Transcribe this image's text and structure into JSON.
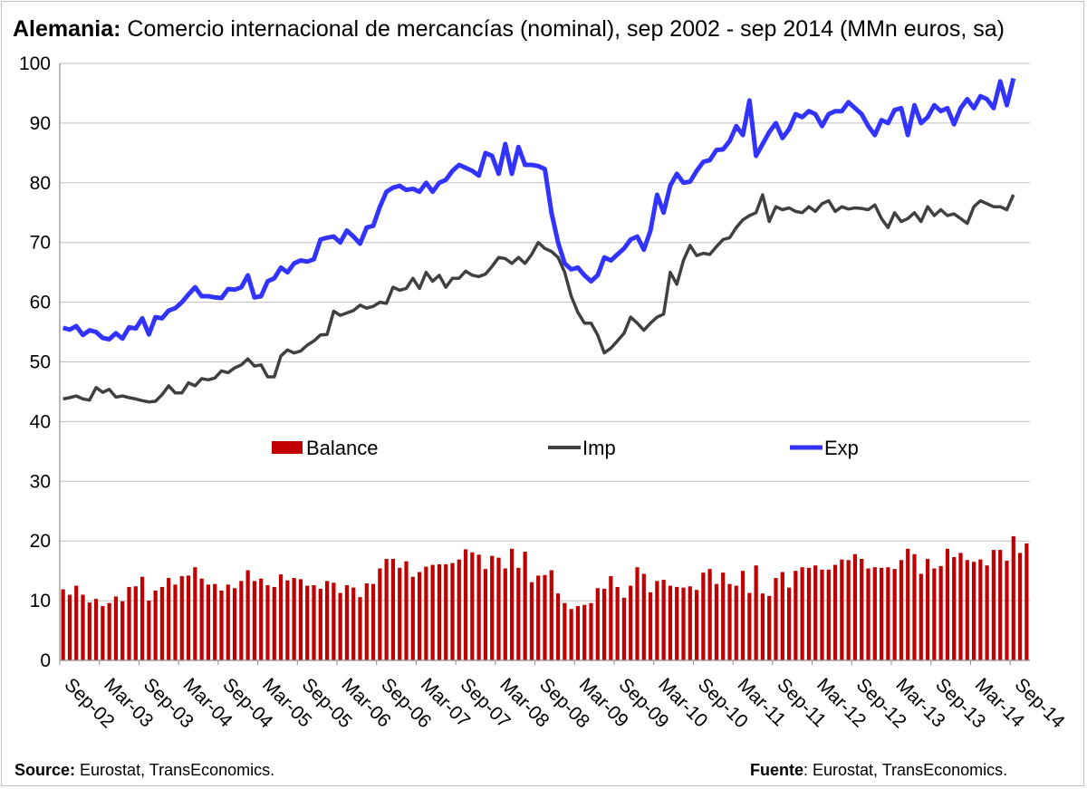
{
  "title": {
    "bold": "Alemania:",
    "rest": " Comercio internacional de mercancías (nominal), sep 2002 - sep 2014 (MMn euros, sa)"
  },
  "footer": {
    "left_bold": "Source:",
    "left_text": " Eurostat, TransEconomics.",
    "right_bold": "Fuente",
    "right_text": ": Eurostat, TransEconomics."
  },
  "chart_data": {
    "type": "bar+line",
    "ylim": [
      0,
      100
    ],
    "yticks": [
      0,
      10,
      20,
      30,
      40,
      50,
      60,
      70,
      80,
      90,
      100
    ],
    "grid": "horizontal",
    "legend": "center",
    "x_start": "2002-09",
    "x_end": "2014-09",
    "xticks": [
      "Sep-02",
      "Mar-03",
      "Sep-03",
      "Mar-04",
      "Sep-04",
      "Mar-05",
      "Sep-05",
      "Mar-06",
      "Sep-06",
      "Mar-07",
      "Sep-07",
      "Mar-08",
      "Sep-08",
      "Mar-09",
      "Sep-09",
      "Mar-10",
      "Sep-10",
      "Mar-11",
      "Sep-11",
      "Mar-12",
      "Sep-12",
      "Mar-13",
      "Sep-13",
      "Mar-14",
      "Sep-14"
    ],
    "colors": {
      "Balance": "#c00000",
      "Imp": "#404040",
      "Exp": "#3333ff"
    },
    "series": [
      {
        "name": "Exp",
        "kind": "line",
        "values": [
          55.7,
          55.4,
          56.0,
          54.5,
          55.3,
          55.0,
          54.0,
          53.8,
          54.8,
          53.9,
          55.8,
          55.6,
          57.3,
          54.6,
          57.5,
          57.3,
          58.6,
          59.0,
          60.0,
          61.3,
          62.5,
          61.0,
          61.0,
          60.8,
          60.7,
          62.2,
          62.1,
          62.5,
          64.5,
          60.8,
          61.0,
          63.5,
          64.0,
          65.8,
          65.0,
          66.5,
          67.0,
          66.8,
          67.2,
          70.5,
          70.8,
          71.0,
          70.0,
          72.0,
          71.0,
          69.8,
          72.5,
          72.8,
          76.0,
          78.5,
          79.2,
          79.5,
          78.8,
          79.0,
          78.5,
          80.0,
          78.5,
          80.0,
          80.5,
          82.0,
          83.0,
          82.5,
          82.0,
          81.2,
          85.0,
          84.5,
          81.5,
          86.5,
          81.5,
          86.0,
          83.0,
          83.0,
          82.8,
          82.3,
          75.0,
          70.0,
          66.5,
          65.5,
          65.8,
          64.5,
          63.5,
          64.5,
          67.5,
          67.0,
          68.0,
          69.0,
          70.5,
          71.0,
          68.8,
          72.0,
          78.0,
          75.0,
          79.5,
          81.5,
          80.0,
          80.2,
          82.0,
          83.5,
          83.8,
          85.5,
          85.6,
          87.0,
          89.5,
          88.0,
          93.8,
          84.5,
          86.5,
          88.5,
          90.0,
          87.5,
          89.0,
          91.5,
          91.0,
          92.0,
          91.5,
          89.5,
          91.5,
          92.0,
          92.0,
          93.5,
          92.5,
          91.5,
          89.5,
          88.0,
          90.5,
          90.0,
          92.2,
          92.5,
          88.0,
          93.0,
          90.0,
          91.0,
          93.0,
          92.0,
          92.5,
          89.8,
          92.5,
          94.0,
          92.5,
          94.5,
          94.0,
          92.5,
          97.0,
          93.0,
          97.5
        ]
      },
      {
        "name": "Imp",
        "kind": "line",
        "values": [
          43.8,
          44.0,
          44.3,
          43.8,
          43.6,
          45.7,
          44.9,
          45.4,
          44.1,
          44.3,
          44.0,
          43.8,
          43.5,
          43.3,
          43.4,
          44.5,
          46.0,
          44.8,
          44.8,
          46.5,
          46.0,
          47.2,
          47.0,
          47.3,
          48.5,
          48.2,
          49.0,
          49.5,
          50.5,
          49.3,
          49.5,
          47.5,
          47.5,
          51.0,
          52.0,
          51.5,
          51.8,
          52.8,
          53.5,
          54.5,
          54.6,
          58.5,
          57.8,
          58.2,
          58.6,
          59.5,
          59.0,
          59.3,
          60.0,
          59.8,
          62.5,
          62.0,
          62.3,
          64.0,
          62.3,
          65.0,
          63.5,
          64.5,
          62.5,
          64.0,
          64.0,
          65.2,
          64.5,
          64.3,
          64.7,
          66.0,
          67.5,
          67.3,
          66.5,
          67.5,
          66.5,
          68.0,
          70.0,
          69.0,
          68.5,
          67.5,
          65.0,
          61.0,
          58.3,
          56.5,
          56.5,
          54.5,
          51.5,
          52.3,
          53.5,
          54.8,
          57.5,
          56.5,
          55.3,
          56.5,
          57.5,
          58.0,
          65.0,
          63.0,
          67.0,
          69.5,
          67.8,
          68.2,
          68.0,
          69.3,
          70.5,
          70.8,
          72.5,
          73.8,
          74.5,
          75.0,
          78.0,
          73.5,
          76.0,
          75.5,
          75.8,
          75.2,
          75.0,
          76.0,
          75.2,
          76.5,
          77.0,
          75.2,
          76.0,
          75.6,
          75.8,
          75.7,
          75.5,
          76.3,
          74.0,
          72.5,
          75.0,
          73.5,
          74.0,
          75.0,
          73.5,
          76.0,
          74.5,
          75.5,
          74.5,
          74.8,
          74.0,
          73.2,
          76.0,
          77.0,
          76.5,
          76.0,
          76.0,
          75.5,
          78.0
        ]
      },
      {
        "name": "Balance",
        "kind": "bar",
        "values": [
          11.9,
          11.0,
          12.5,
          11.0,
          9.7,
          10.3,
          9.1,
          9.6,
          10.7,
          9.9,
          12.3,
          12.4,
          14.0,
          10.0,
          11.7,
          12.3,
          13.8,
          12.7,
          14.1,
          14.2,
          15.6,
          13.7,
          12.7,
          12.8,
          11.7,
          12.7,
          12.1,
          13.3,
          15.1,
          13.3,
          13.7,
          12.6,
          12.3,
          14.4,
          13.4,
          13.8,
          13.6,
          12.5,
          12.6,
          12.0,
          13.3,
          13.0,
          11.3,
          12.6,
          12.2,
          10.6,
          12.9,
          12.8,
          15.4,
          17.0,
          17.0,
          15.5,
          16.6,
          14.0,
          14.8,
          15.7,
          16.0,
          16.1,
          16.1,
          16.3,
          16.9,
          18.6,
          18.1,
          17.7,
          15.3,
          17.5,
          17.2,
          15.4,
          18.7,
          15.5,
          18.2,
          13.1,
          14.2,
          14.3,
          15.1,
          11.2,
          9.6,
          8.6,
          9.1,
          9.3,
          9.6,
          12.1,
          12.0,
          14.1,
          12.3,
          10.5,
          12.5,
          15.6,
          14.5,
          11.4,
          13.3,
          13.5,
          12.5,
          12.3,
          12.2,
          12.4,
          11.8,
          14.7,
          15.3,
          12.8,
          14.7,
          12.8,
          12.5,
          15.0,
          11.3,
          15.9,
          11.2,
          10.8,
          13.8,
          14.8,
          12.2,
          15.0,
          15.6,
          15.5,
          15.9,
          15.2,
          15.2,
          16.0,
          16.9,
          16.8,
          17.8,
          17.0,
          15.4,
          15.6,
          15.5,
          15.6,
          15.3,
          16.8,
          18.7,
          17.8,
          14.5,
          17.0,
          15.4,
          15.8,
          18.7,
          17.3,
          18.0,
          16.8,
          16.5,
          16.9,
          15.9,
          18.5,
          18.5,
          16.7,
          20.8,
          18.0,
          19.6
        ]
      }
    ]
  }
}
